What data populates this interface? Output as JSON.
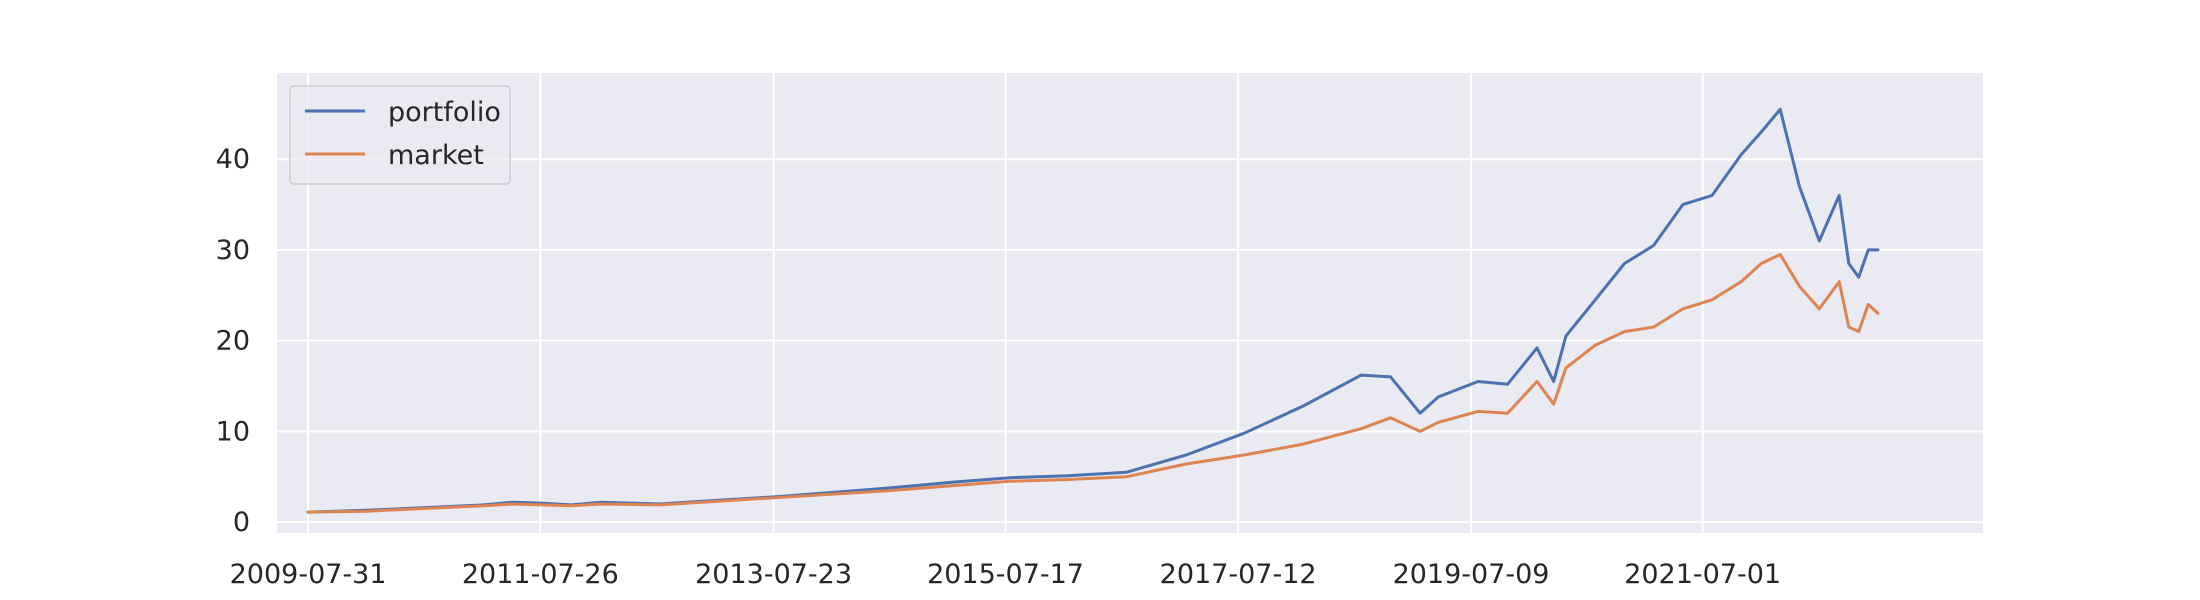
{
  "chart_data": {
    "type": "line",
    "title": "",
    "xlabel": "",
    "ylabel": "",
    "x_tick_labels": [
      "2009-07-31",
      "2011-07-26",
      "2013-07-23",
      "2015-07-17",
      "2017-07-12",
      "2019-07-09",
      "2021-07-01"
    ],
    "y_ticks": [
      0,
      10,
      20,
      30,
      40
    ],
    "xlim": [
      "2009-04-25",
      "2023-11-23"
    ],
    "ylim": [
      -1.2,
      49.5
    ],
    "grid": true,
    "legend_position": "upper-left",
    "series": [
      {
        "name": "portfolio",
        "color": "#4c72b0",
        "x": [
          "2009-07-31",
          "2010-01-29",
          "2010-07-30",
          "2011-01-31",
          "2011-04-29",
          "2011-07-29",
          "2011-10-31",
          "2012-01-31",
          "2012-07-31",
          "2013-01-31",
          "2013-07-31",
          "2014-01-31",
          "2014-07-31",
          "2015-01-30",
          "2015-07-31",
          "2016-01-29",
          "2016-07-29",
          "2017-01-31",
          "2017-07-31",
          "2018-01-31",
          "2018-07-31",
          "2018-10-31",
          "2019-01-31",
          "2019-03-29",
          "2019-07-31",
          "2019-10-31",
          "2020-01-31",
          "2020-03-23",
          "2020-04-30",
          "2020-07-31",
          "2020-10-30",
          "2021-01-29",
          "2021-04-30",
          "2021-07-30",
          "2021-10-29",
          "2021-12-31",
          "2022-02-28",
          "2022-04-29",
          "2022-06-30",
          "2022-08-31",
          "2022-09-30",
          "2022-10-31",
          "2022-11-30",
          "2022-12-30"
        ],
        "values": [
          1.1,
          1.3,
          1.6,
          1.9,
          2.2,
          2.1,
          1.9,
          2.2,
          2.0,
          2.4,
          2.8,
          3.3,
          3.8,
          4.4,
          4.9,
          5.1,
          5.5,
          7.4,
          9.8,
          12.8,
          16.2,
          16.0,
          12.0,
          13.8,
          15.5,
          15.2,
          19.2,
          15.5,
          20.5,
          24.5,
          28.5,
          30.5,
          35.0,
          36.0,
          40.5,
          43.0,
          45.5,
          37.0,
          31.0,
          36.0,
          28.5,
          27.0,
          30.0,
          30.0
        ]
      },
      {
        "name": "market",
        "color": "#dd8452",
        "x": [
          "2009-07-31",
          "2010-01-29",
          "2010-07-30",
          "2011-01-31",
          "2011-04-29",
          "2011-07-29",
          "2011-10-31",
          "2012-01-31",
          "2012-07-31",
          "2013-01-31",
          "2013-07-31",
          "2014-01-31",
          "2014-07-31",
          "2015-01-30",
          "2015-07-31",
          "2016-01-29",
          "2016-07-29",
          "2017-01-31",
          "2017-07-31",
          "2018-01-31",
          "2018-07-31",
          "2018-10-31",
          "2019-01-31",
          "2019-03-29",
          "2019-07-31",
          "2019-10-31",
          "2020-01-31",
          "2020-03-23",
          "2020-04-30",
          "2020-07-31",
          "2020-10-30",
          "2021-01-29",
          "2021-04-30",
          "2021-07-30",
          "2021-10-29",
          "2021-12-31",
          "2022-02-28",
          "2022-04-29",
          "2022-06-30",
          "2022-08-31",
          "2022-09-30",
          "2022-10-31",
          "2022-11-30",
          "2022-12-30"
        ],
        "values": [
          1.1,
          1.2,
          1.5,
          1.8,
          2.0,
          1.9,
          1.8,
          2.0,
          1.9,
          2.3,
          2.7,
          3.1,
          3.5,
          4.0,
          4.5,
          4.7,
          5.0,
          6.4,
          7.4,
          8.6,
          10.3,
          11.5,
          10.0,
          11.0,
          12.2,
          12.0,
          15.5,
          13.0,
          17.0,
          19.5,
          21.0,
          21.5,
          23.5,
          24.5,
          26.5,
          28.5,
          29.5,
          26.0,
          23.5,
          26.5,
          21.5,
          21.0,
          24.0,
          23.0
        ]
      }
    ]
  }
}
